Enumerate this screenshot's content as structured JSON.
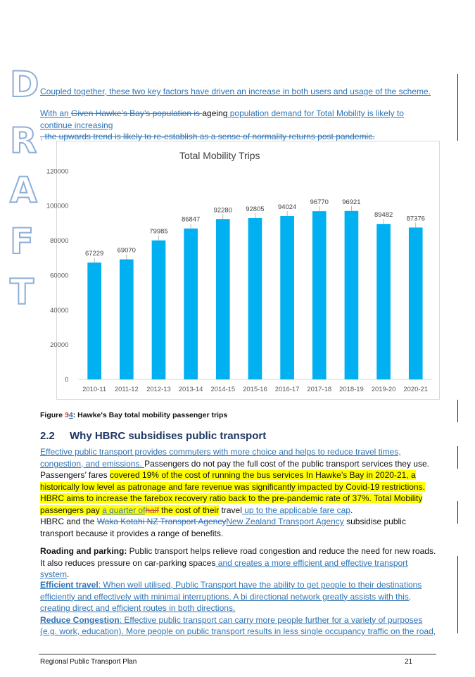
{
  "watermark": [
    "D",
    "R",
    "A",
    "F",
    "T"
  ],
  "intro": {
    "line1": "Coupled together, these two key factors have driven an increase in both users and usage of the scheme.",
    "p2_ins1": "With an ",
    "p2_del1": "Given Hawke’s Bay’s population is ",
    "p2_plain": "ageing",
    "p2_ins2": " population demand for Total Mobility is likely to continue increasing",
    "p2_del2": ", the upwards trend is likely to re-establish as a sense of normality returns post pandemic."
  },
  "chart_data": {
    "type": "bar",
    "title": "Total Mobility Trips",
    "categories": [
      "2010-11",
      "2011-12",
      "2012-13",
      "2013-14",
      "2014-15",
      "2015-16",
      "2016-17",
      "2017-18",
      "2018-19",
      "2019-20",
      "2020-21"
    ],
    "values": [
      67229,
      69070,
      79985,
      86847,
      92280,
      92805,
      94024,
      96770,
      96921,
      89482,
      87376
    ],
    "data_labels": [
      "67229",
      "69070",
      "79985",
      "86847",
      "92280",
      "92805",
      "94024",
      "96770",
      "96921",
      "89482",
      "87376"
    ],
    "y_ticks": [
      "0",
      "20000",
      "40000",
      "60000",
      "80000",
      "100000",
      "120000"
    ],
    "ylim": [
      0,
      120000
    ],
    "grid": false,
    "bar_color": "#00b0f0"
  },
  "caption": {
    "prefix": "Figure ",
    "del": "3",
    "ins": "4",
    "text": ": Hawke's Bay total mobility passenger trips"
  },
  "section": {
    "number": "2.2",
    "title": "Why HBRC subsidises public transport"
  },
  "body": {
    "p1_ins": "Effective public transport provides commuters with more choice and helps to reduce travel times, congestion, and emissions. ",
    "p1_a": "Passengers do not pay the full cost of the public transport services they use. Passengers’ fares ",
    "p1_hl1": "covered 19% of the cost of running the bus services In Hawke’s Bay in 2020-21, a historically low level as patronage and fare revenue was significantly impacted by Covid-19 restrictions. HBRC aims to increase the farebox recovery ratio back to the pre-pandemic rate of 37%. Total Mobility passengers pay ",
    "p1_hl_ins": "a quarter of",
    "p1_hl_del": "half",
    "p1_hl2": " the cost of their",
    "p1_b": " travel",
    "p1_ins2": " up to the applicable fare cap",
    "p1_end": ".",
    "p2_a": "HBRC and the ",
    "p2_del": "Waka Kotahi NZ Transport Agency",
    "p2_ins": "New Zealand Transport Agency",
    "p2_b": " subsidise public transport because it provides a range of benefits.",
    "p3_bold": "Roading and parking:",
    "p3_a": " Public transport helps relieve road congestion and reduce the need for new roads. It also reduces pressure on car-parking spaces",
    "p3_ins": " and creates a more efficient and effective transport system",
    "p3_end": ".",
    "p4_bold": "Efficient travel",
    "p4_ins": ": When well utilised, Public Transport have the ability to get people to their destinations efficiently and effectively with minimal interruptions. A bi directional network greatly assists with this, creating direct and efficient routes in both directions.",
    "p5_bold": "Reduce Congestion",
    "p5_ins": ": Effective public transport can carry more people further for a variety of purposes (e.g. work, education). More people on public transport results in less single occupancy traffic on the road,"
  },
  "footer": {
    "title": "Regional Public Transport Plan",
    "page": "21"
  }
}
